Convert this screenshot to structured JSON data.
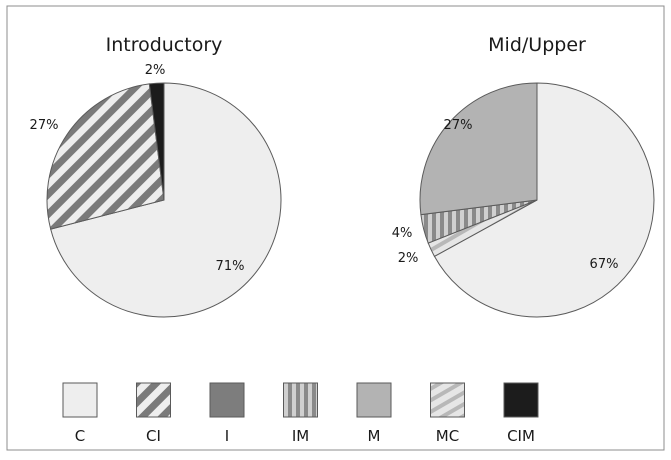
{
  "colors": {
    "C": "#eeeeee",
    "CI": "#7a7a7a",
    "I": "#7d7d7d",
    "IM": "#8a8a8a",
    "M": "#b3b3b3",
    "MC": "#c4c4c4",
    "CIM": "#1c1c1c",
    "outline": "#5a5a5a",
    "frame": "#8c8c8c"
  },
  "legend": {
    "items": [
      {
        "key": "C",
        "label": "C"
      },
      {
        "key": "CI",
        "label": "CI"
      },
      {
        "key": "I",
        "label": "I"
      },
      {
        "key": "IM",
        "label": "IM"
      },
      {
        "key": "M",
        "label": "M"
      },
      {
        "key": "MC",
        "label": "MC"
      },
      {
        "key": "CIM",
        "label": "CIM"
      }
    ]
  },
  "chart_data": [
    {
      "type": "pie",
      "title": "Introductory",
      "slices": [
        {
          "category": "C",
          "value": 71,
          "label": "71%"
        },
        {
          "category": "CI",
          "value": 27,
          "label": "27%"
        },
        {
          "category": "CIM",
          "value": 2,
          "label": "2%"
        }
      ]
    },
    {
      "type": "pie",
      "title": "Mid/Upper",
      "slices": [
        {
          "category": "C",
          "value": 67,
          "label": "67%"
        },
        {
          "category": "MC",
          "value": 2,
          "label": "2%"
        },
        {
          "category": "IM",
          "value": 4,
          "label": "4%"
        },
        {
          "category": "M",
          "value": 27,
          "label": "27%"
        }
      ]
    }
  ]
}
